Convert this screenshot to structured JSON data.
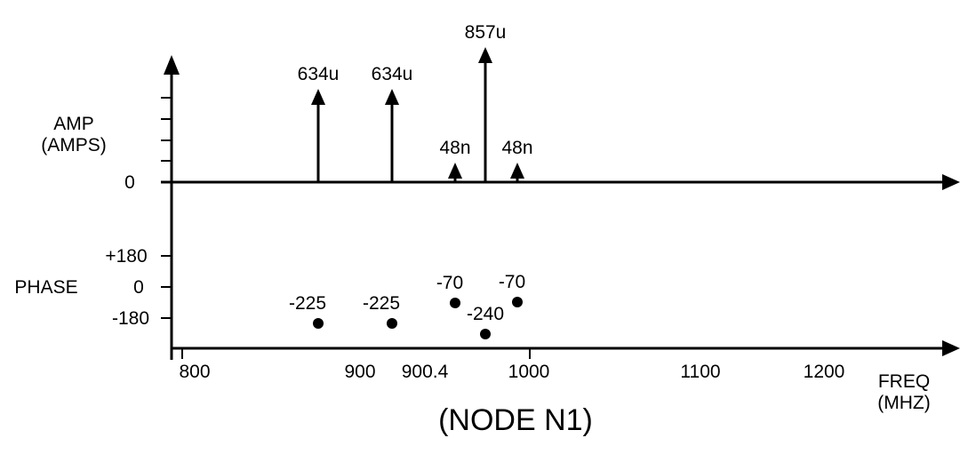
{
  "amp_axis": {
    "label_line1": "AMP",
    "label_line2": "(AMPS)",
    "zero": "0"
  },
  "phase_axis": {
    "label": "PHASE",
    "plus180": "+180",
    "zero": "0",
    "minus180": "-180"
  },
  "freq_axis": {
    "label_line1": "FREQ",
    "label_line2": "(MHZ)",
    "ticks": [
      "800",
      "900",
      "900.4",
      "1000",
      "1100",
      "1200"
    ]
  },
  "title": "(NODE N1)",
  "chart_data": {
    "type": "scatter",
    "title": "(NODE N1)",
    "xlabel": "FREQ (MHZ)",
    "ylabel_amp": "AMP (AMPS)",
    "ylabel_phase": "PHASE",
    "amplitude_spectrum": [
      {
        "label": "634u",
        "amp": 0.000634
      },
      {
        "label": "634u",
        "amp": 0.000634
      },
      {
        "label": "48n",
        "amp": 4.8e-08
      },
      {
        "label": "857u",
        "amp": 0.000857
      },
      {
        "label": "48n",
        "amp": 4.8e-08
      }
    ],
    "phase_spectrum": [
      {
        "label": "-225",
        "phase": -225
      },
      {
        "label": "-225",
        "phase": -225
      },
      {
        "label": "-70",
        "phase": -70
      },
      {
        "label": "-240",
        "phase": -240
      },
      {
        "label": "-70",
        "phase": -70
      }
    ]
  }
}
